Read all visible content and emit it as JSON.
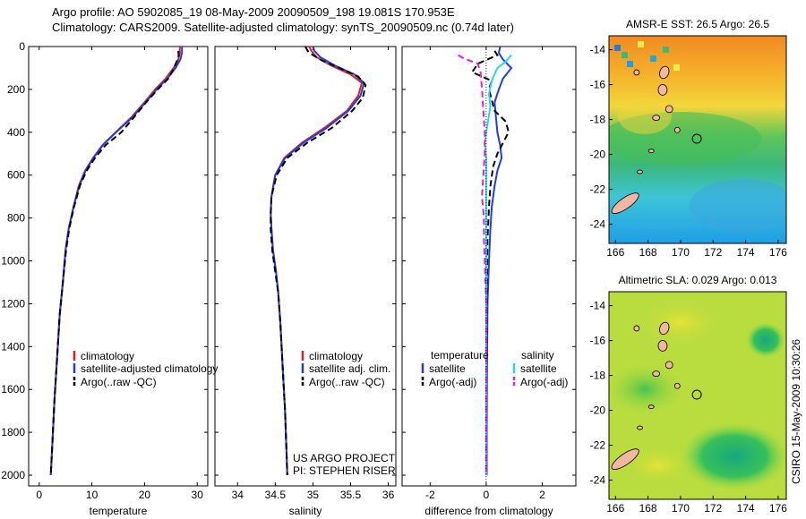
{
  "header": {
    "title_line1": "Argo profile: AO 5902085_19 08-May-2009 20090509_198 19.081S 170.953E",
    "title_line2": "Climatology: CARS2009. Satellite-adjusted climatology: synTS_20090509.nc (0.74d later)"
  },
  "colors": {
    "climatology": "#e02020",
    "satellite": "#1f3de0",
    "argo": "#000000",
    "satellite_sal": "#22d8e8",
    "argo_sal": "#e020e0"
  },
  "chart_data": [
    {
      "id": "temperature",
      "type": "line",
      "xlabel": "temperature",
      "xlim": [
        -2,
        32
      ],
      "xticks": [
        0,
        10,
        20,
        30
      ],
      "ylim": [
        0,
        2050
      ],
      "yreverse": true,
      "yticks": [
        0,
        200,
        400,
        600,
        800,
        1000,
        1200,
        1400,
        1600,
        1800,
        2000
      ],
      "legend": [
        "climatology",
        "satellite-adjusted climatology",
        "Argo(..raw -QC)"
      ],
      "series": [
        {
          "name": "climatology",
          "color": "#e02020",
          "points": [
            [
              26.7,
              0
            ],
            [
              26.7,
              30
            ],
            [
              26.4,
              60
            ],
            [
              25.5,
              100
            ],
            [
              24,
              150
            ],
            [
              22,
              200
            ],
            [
              20,
              260
            ],
            [
              17.5,
              330
            ],
            [
              14.5,
              400
            ],
            [
              12,
              460
            ],
            [
              10.2,
              520
            ],
            [
              8.7,
              580
            ],
            [
              7.5,
              650
            ],
            [
              6.5,
              750
            ],
            [
              5.6,
              850
            ],
            [
              5,
              950
            ],
            [
              4.5,
              1100
            ],
            [
              3.9,
              1250
            ],
            [
              3.4,
              1450
            ],
            [
              2.9,
              1650
            ],
            [
              2.5,
              1850
            ],
            [
              2.2,
              2000
            ]
          ]
        },
        {
          "name": "satellite-adjusted climatology",
          "color": "#1f3de0",
          "points": [
            [
              27.1,
              0
            ],
            [
              27.1,
              30
            ],
            [
              26.8,
              60
            ],
            [
              25.9,
              100
            ],
            [
              24.3,
              150
            ],
            [
              22.3,
              200
            ],
            [
              20.2,
              260
            ],
            [
              17.7,
              330
            ],
            [
              14.6,
              400
            ],
            [
              12.1,
              460
            ],
            [
              10.3,
              520
            ],
            [
              8.8,
              580
            ],
            [
              7.6,
              650
            ],
            [
              6.5,
              750
            ],
            [
              5.6,
              850
            ],
            [
              5,
              950
            ],
            [
              4.5,
              1100
            ],
            [
              3.9,
              1250
            ],
            [
              3.4,
              1450
            ],
            [
              2.9,
              1650
            ],
            [
              2.5,
              1850
            ],
            [
              2.2,
              2000
            ]
          ]
        },
        {
          "name": "Argo(..raw -QC)",
          "color": "#000000",
          "dashed": true,
          "points": [
            [
              26.4,
              20
            ],
            [
              26.5,
              40
            ],
            [
              26.1,
              70
            ],
            [
              25.4,
              110
            ],
            [
              24.5,
              150
            ],
            [
              22.5,
              200
            ],
            [
              20.3,
              260
            ],
            [
              18,
              330
            ],
            [
              15.6,
              400
            ],
            [
              12.6,
              460
            ],
            [
              10.6,
              520
            ],
            [
              9,
              580
            ],
            [
              7.7,
              650
            ],
            [
              6.6,
              750
            ],
            [
              5.7,
              850
            ],
            [
              5.1,
              950
            ],
            [
              4.5,
              1100
            ],
            [
              3.9,
              1250
            ],
            [
              3.4,
              1450
            ],
            [
              2.9,
              1650
            ],
            [
              2.5,
              1850
            ],
            [
              2.2,
              2000
            ]
          ]
        }
      ]
    },
    {
      "id": "salinity",
      "type": "line",
      "xlabel": "salinity",
      "xlim": [
        33.7,
        36.1
      ],
      "xticks": [
        34,
        34.5,
        35,
        35.5,
        36
      ],
      "ylim": [
        0,
        2050
      ],
      "yreverse": true,
      "yticks": [
        0,
        200,
        400,
        600,
        800,
        1000,
        1200,
        1400,
        1600,
        1800,
        2000
      ],
      "legend": [
        "climatology",
        "satellite adj. clim.",
        "Argo(..raw -QC)"
      ],
      "annotation": [
        "US ARGO PROJECT",
        "PI: STEPHEN RISER"
      ],
      "series": [
        {
          "name": "climatology",
          "color": "#e02020",
          "points": [
            [
              34.95,
              0
            ],
            [
              34.98,
              20
            ],
            [
              35.05,
              50
            ],
            [
              35.25,
              90
            ],
            [
              35.5,
              130
            ],
            [
              35.65,
              170
            ],
            [
              35.6,
              230
            ],
            [
              35.45,
              300
            ],
            [
              35.15,
              380
            ],
            [
              34.85,
              450
            ],
            [
              34.62,
              520
            ],
            [
              34.5,
              600
            ],
            [
              34.45,
              700
            ],
            [
              34.44,
              780
            ],
            [
              34.45,
              850
            ],
            [
              34.47,
              950
            ],
            [
              34.51,
              1050
            ],
            [
              34.54,
              1150
            ],
            [
              34.57,
              1300
            ],
            [
              34.6,
              1500
            ],
            [
              34.63,
              1700
            ],
            [
              34.65,
              1900
            ],
            [
              34.66,
              2000
            ]
          ]
        },
        {
          "name": "satellite adj. clim.",
          "color": "#1f3de0",
          "points": [
            [
              35.0,
              0
            ],
            [
              35.02,
              20
            ],
            [
              35.1,
              50
            ],
            [
              35.3,
              90
            ],
            [
              35.55,
              130
            ],
            [
              35.68,
              170
            ],
            [
              35.63,
              230
            ],
            [
              35.47,
              300
            ],
            [
              35.18,
              380
            ],
            [
              34.87,
              450
            ],
            [
              34.63,
              520
            ],
            [
              34.5,
              600
            ],
            [
              34.45,
              700
            ],
            [
              34.44,
              780
            ],
            [
              34.45,
              850
            ],
            [
              34.47,
              950
            ],
            [
              34.51,
              1050
            ],
            [
              34.54,
              1150
            ],
            [
              34.57,
              1300
            ],
            [
              34.6,
              1500
            ],
            [
              34.63,
              1700
            ],
            [
              34.65,
              1900
            ],
            [
              34.66,
              2000
            ]
          ]
        },
        {
          "name": "Argo(..raw -QC)",
          "color": "#000000",
          "dashed": true,
          "points": [
            [
              34.9,
              0
            ],
            [
              34.93,
              20
            ],
            [
              35.0,
              40
            ],
            [
              35.12,
              65
            ],
            [
              35.35,
              100
            ],
            [
              35.6,
              140
            ],
            [
              35.7,
              180
            ],
            [
              35.66,
              240
            ],
            [
              35.52,
              300
            ],
            [
              35.25,
              380
            ],
            [
              34.92,
              450
            ],
            [
              34.66,
              520
            ],
            [
              34.52,
              600
            ],
            [
              34.45,
              700
            ],
            [
              34.44,
              780
            ],
            [
              34.44,
              850
            ],
            [
              34.46,
              950
            ],
            [
              34.5,
              1050
            ],
            [
              34.54,
              1150
            ],
            [
              34.57,
              1300
            ],
            [
              34.6,
              1500
            ],
            [
              34.63,
              1700
            ],
            [
              34.65,
              1900
            ],
            [
              34.66,
              2000
            ]
          ]
        }
      ]
    },
    {
      "id": "difference",
      "type": "line",
      "xlabel": "difference from climatology",
      "xlim": [
        -3,
        3.2
      ],
      "xticks": [
        -2,
        0,
        2
      ],
      "ylim": [
        0,
        2050
      ],
      "yreverse": true,
      "yticks": [
        0,
        200,
        400,
        600,
        800,
        1000,
        1200,
        1400,
        1600,
        1800,
        2000
      ],
      "legend_headers": [
        "temperature",
        "salinity"
      ],
      "legend_left": [
        "satellite",
        "Argo(-adj)"
      ],
      "legend_right": [
        "satellite",
        "Argo(-adj)"
      ],
      "series": [
        {
          "name": "temperature satellite",
          "color": "#1f3de0",
          "points": [
            [
              0.5,
              0
            ],
            [
              0.45,
              30
            ],
            [
              0.6,
              60
            ],
            [
              0.9,
              100
            ],
            [
              0.6,
              150
            ],
            [
              0.45,
              200
            ],
            [
              0.3,
              260
            ],
            [
              0.35,
              330
            ],
            [
              0.4,
              400
            ],
            [
              0.5,
              460
            ],
            [
              0.55,
              520
            ],
            [
              0.4,
              580
            ],
            [
              0.3,
              650
            ],
            [
              0.2,
              750
            ],
            [
              0.15,
              850
            ],
            [
              0.1,
              1000
            ],
            [
              0.05,
              1200
            ],
            [
              0.03,
              1500
            ],
            [
              0.02,
              1800
            ],
            [
              0.02,
              2000
            ]
          ]
        },
        {
          "name": "temperature Argo(-adj)",
          "color": "#000000",
          "dashed": true,
          "points": [
            [
              0.3,
              20
            ],
            [
              0.4,
              40
            ],
            [
              -0.3,
              80
            ],
            [
              -0.5,
              120
            ],
            [
              0.2,
              160
            ],
            [
              0.1,
              200
            ],
            [
              0.2,
              250
            ],
            [
              0.3,
              300
            ],
            [
              0.7,
              350
            ],
            [
              0.8,
              400
            ],
            [
              0.6,
              450
            ],
            [
              0.4,
              500
            ],
            [
              0.25,
              560
            ],
            [
              0.15,
              650
            ],
            [
              0.1,
              750
            ],
            [
              0.05,
              900
            ],
            [
              0.02,
              1100
            ],
            [
              0.01,
              1400
            ],
            [
              0.0,
              1700
            ],
            [
              0.0,
              2000
            ]
          ]
        },
        {
          "name": "salinity satellite",
          "color": "#22d8e8",
          "points": [
            [
              0.9,
              40
            ],
            [
              0.7,
              70
            ],
            [
              0.4,
              100
            ],
            [
              0.2,
              160
            ],
            [
              0.1,
              220
            ],
            [
              0.15,
              280
            ],
            [
              0.05,
              360
            ],
            [
              -0.05,
              450
            ],
            [
              0.0,
              520
            ],
            [
              0.0,
              600
            ],
            [
              0.0,
              700
            ],
            [
              0.0,
              800
            ],
            [
              0.0,
              1000
            ],
            [
              0.0,
              1300
            ],
            [
              0.0,
              1600
            ],
            [
              0.0,
              2000
            ]
          ]
        },
        {
          "name": "salinity Argo(-adj)",
          "color": "#e020e0",
          "dashed": true,
          "points": [
            [
              -1.0,
              40
            ],
            [
              -0.8,
              55
            ],
            [
              -0.6,
              65
            ],
            [
              -0.3,
              80
            ],
            [
              -0.2,
              120
            ],
            [
              -0.15,
              200
            ],
            [
              -0.1,
              300
            ],
            [
              -0.05,
              400
            ],
            [
              -0.05,
              500
            ],
            [
              -0.1,
              600
            ],
            [
              -0.15,
              700
            ],
            [
              -0.08,
              800
            ],
            [
              -0.08,
              900
            ],
            [
              -0.05,
              1000
            ],
            [
              0.0,
              1200
            ],
            [
              0.0,
              1500
            ],
            [
              0.0,
              2000
            ]
          ]
        }
      ]
    },
    {
      "id": "sst-map",
      "type": "heatmap",
      "title": "AMSR-E SST: 26.5  Argo: 26.5",
      "xticks": [
        166,
        168,
        170,
        172,
        174,
        176
      ],
      "yticks": [
        -14,
        -16,
        -18,
        -20,
        -22,
        -24
      ],
      "xlim": [
        165.6,
        176.5
      ],
      "ylim": [
        -25.1,
        -13.2
      ],
      "marker": [
        171.0,
        -19.1
      ]
    },
    {
      "id": "sla-map",
      "type": "heatmap",
      "title": "Altimetric SLA: 0.029  Argo: 0.013",
      "xticks": [
        166,
        168,
        170,
        172,
        174,
        176
      ],
      "yticks": [
        -14,
        -16,
        -18,
        -20,
        -22,
        -24
      ],
      "xlim": [
        165.6,
        176.5
      ],
      "ylim": [
        -25.1,
        -13.2
      ],
      "marker": [
        171.0,
        -19.1
      ]
    }
  ],
  "side_label": "CSIRO 15-May-2009 10:30:26"
}
